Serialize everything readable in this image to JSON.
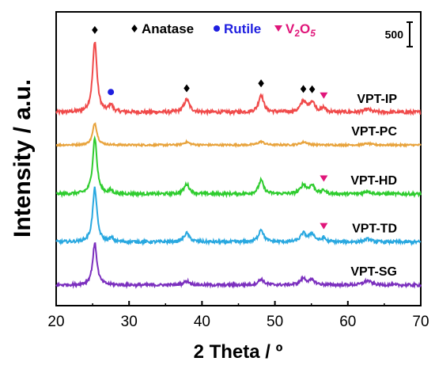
{
  "chart_data": {
    "type": "line",
    "xlabel": "2 Theta / º",
    "ylabel": "Intensity / a.u.",
    "xlim": [
      20,
      70
    ],
    "x_ticks": [
      "20",
      "30",
      "40",
      "50",
      "60",
      "70"
    ],
    "scale_bar": {
      "label": "500",
      "value": 500
    },
    "legend": {
      "placement": "top",
      "entries": [
        {
          "symbol": "diamond",
          "label": "Anatase",
          "color": "#000000"
        },
        {
          "symbol": "circle",
          "label": "Rutile",
          "color": "#1f1fe0"
        },
        {
          "symbol": "triangle-down",
          "label": "V",
          "sub": "2",
          "mid": "O",
          "sub2": "5",
          "color": "#e0167a"
        }
      ]
    },
    "series": [
      {
        "name": "VPT-IP",
        "color": "#f04a4a",
        "baseline": 3950,
        "noise": 35,
        "peaks": [
          [
            25.3,
            1450,
            0.35
          ],
          [
            27.5,
            150,
            0.3
          ],
          [
            37.9,
            260,
            0.45
          ],
          [
            48.1,
            360,
            0.4
          ],
          [
            53.9,
            220,
            0.45
          ],
          [
            55.1,
            210,
            0.45
          ],
          [
            56.7,
            90,
            0.3
          ],
          [
            62.7,
            60,
            0.5
          ]
        ]
      },
      {
        "name": "VPT-PC",
        "color": "#e8a33c",
        "baseline": 3280,
        "noise": 18,
        "peaks": [
          [
            25.3,
            450,
            0.35
          ],
          [
            37.9,
            60,
            0.5
          ],
          [
            48.1,
            70,
            0.5
          ],
          [
            54.0,
            60,
            0.6
          ],
          [
            62.7,
            30,
            0.6
          ]
        ]
      },
      {
        "name": "VPT-HD",
        "color": "#2ecc2e",
        "baseline": 2280,
        "noise": 30,
        "peaks": [
          [
            25.3,
            1150,
            0.35
          ],
          [
            27.5,
            60,
            0.3
          ],
          [
            37.9,
            200,
            0.45
          ],
          [
            48.1,
            280,
            0.4
          ],
          [
            53.9,
            180,
            0.45
          ],
          [
            55.1,
            170,
            0.45
          ],
          [
            56.7,
            70,
            0.3
          ],
          [
            62.7,
            60,
            0.5
          ]
        ]
      },
      {
        "name": "VPT-TD",
        "color": "#29a8e0",
        "baseline": 1300,
        "noise": 30,
        "peaks": [
          [
            25.3,
            1100,
            0.35
          ],
          [
            27.6,
            70,
            0.3
          ],
          [
            37.9,
            180,
            0.45
          ],
          [
            48.1,
            260,
            0.4
          ],
          [
            53.9,
            170,
            0.45
          ],
          [
            55.1,
            160,
            0.45
          ],
          [
            56.7,
            80,
            0.3
          ],
          [
            62.7,
            60,
            0.5
          ]
        ]
      },
      {
        "name": "VPT-SG",
        "color": "#7b2fbe",
        "baseline": 420,
        "noise": 28,
        "peaks": [
          [
            25.3,
            850,
            0.35
          ],
          [
            37.9,
            80,
            0.5
          ],
          [
            48.1,
            120,
            0.45
          ],
          [
            53.9,
            130,
            0.5
          ],
          [
            55.1,
            90,
            0.5
          ],
          [
            62.7,
            90,
            0.6
          ]
        ]
      }
    ],
    "markers": [
      {
        "symbol": "diamond",
        "x": 25.3,
        "series": "VPT-IP",
        "color": "#000000"
      },
      {
        "symbol": "circle",
        "x": 27.5,
        "series": "VPT-IP",
        "color": "#1f1fe0"
      },
      {
        "symbol": "diamond",
        "x": 37.9,
        "series": "VPT-IP",
        "color": "#000000"
      },
      {
        "symbol": "diamond",
        "x": 48.1,
        "series": "VPT-IP",
        "color": "#000000"
      },
      {
        "symbol": "diamond",
        "x": 53.9,
        "series": "VPT-IP",
        "color": "#000000"
      },
      {
        "symbol": "diamond",
        "x": 55.1,
        "series": "VPT-IP",
        "color": "#000000"
      },
      {
        "symbol": "triangle-down",
        "x": 56.7,
        "series": "VPT-IP",
        "color": "#e0167a"
      },
      {
        "symbol": "triangle-down",
        "x": 56.7,
        "series": "VPT-HD",
        "color": "#e0167a"
      },
      {
        "symbol": "triangle-down",
        "x": 56.7,
        "series": "VPT-TD",
        "color": "#e0167a"
      }
    ]
  }
}
